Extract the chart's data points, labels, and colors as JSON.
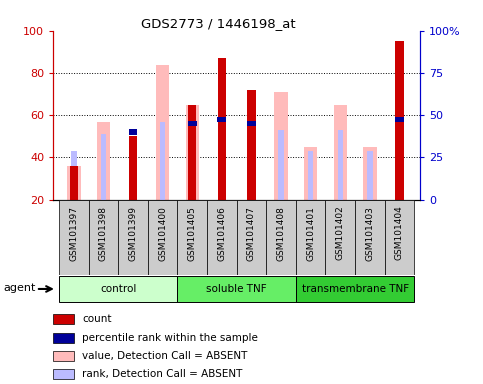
{
  "title": "GDS2773 / 1446198_at",
  "samples": [
    "GSM101397",
    "GSM101398",
    "GSM101399",
    "GSM101400",
    "GSM101405",
    "GSM101406",
    "GSM101407",
    "GSM101408",
    "GSM101401",
    "GSM101402",
    "GSM101403",
    "GSM101404"
  ],
  "count_red": [
    36,
    0,
    50,
    0,
    65,
    87,
    72,
    0,
    0,
    0,
    0,
    95
  ],
  "percentile_blue": [
    0,
    0,
    52,
    0,
    56,
    58,
    56,
    0,
    0,
    0,
    0,
    58
  ],
  "value_absent_pink": [
    36,
    57,
    0,
    84,
    65,
    0,
    0,
    71,
    45,
    65,
    45,
    0
  ],
  "rank_absent_lightblue": [
    43,
    51,
    0,
    57,
    0,
    0,
    0,
    53,
    43,
    53,
    43,
    0
  ],
  "groups": [
    {
      "label": "control",
      "start": 0,
      "end": 4,
      "color": "#ccffcc"
    },
    {
      "label": "soluble TNF",
      "start": 4,
      "end": 8,
      "color": "#66ee66"
    },
    {
      "label": "transmembrane TNF",
      "start": 8,
      "end": 12,
      "color": "#33cc33"
    }
  ],
  "ylim_left": [
    20,
    100
  ],
  "ylim_right": [
    0,
    100
  ],
  "yticks_left": [
    20,
    40,
    60,
    80,
    100
  ],
  "yticks_right": [
    0,
    25,
    50,
    75,
    100
  ],
  "ytick_labels_right": [
    "0",
    "25",
    "50",
    "75",
    "100%"
  ],
  "colors": {
    "red": "#cc0000",
    "blue": "#000099",
    "pink": "#ffbbbb",
    "lightblue": "#bbbbff",
    "left_axis": "#cc0000",
    "right_axis": "#0000cc"
  },
  "plot_bg": "white",
  "xtick_cell_bg": "#cccccc",
  "ymin": 20
}
